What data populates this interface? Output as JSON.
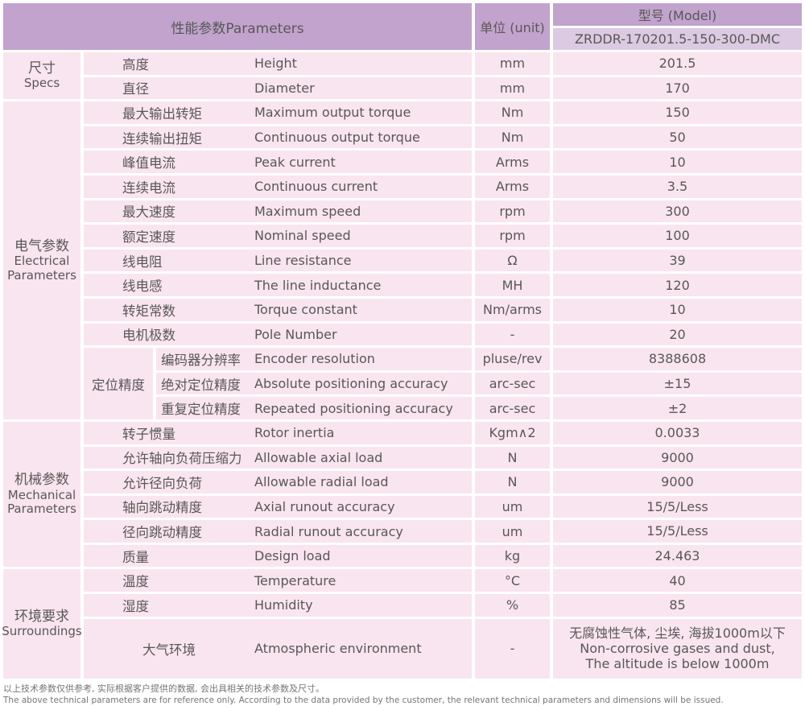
{
  "header": {
    "parameters_label": "性能参数Parameters",
    "unit_label": "单位 (unit)",
    "model_label": "型号 (Model)",
    "model_value": "ZRDDR-170201.5-150-300-DMC"
  },
  "colors": {
    "header_purple": "#c2a3cd",
    "model_row_purple": "#dcc9e2",
    "row_pink": "#f9e5ef",
    "text": "#595757"
  },
  "groups": [
    {
      "title_cn": "尺寸",
      "title_en": "Specs",
      "rows": [
        {
          "cn": "高度",
          "en": "Height",
          "unit": "mm",
          "value": "201.5"
        },
        {
          "cn": "直径",
          "en": "Diameter",
          "unit": "mm",
          "value": "170"
        }
      ]
    },
    {
      "title_cn": "电气参数",
      "title_en": "Electrical Parameters",
      "rows": [
        {
          "cn": "最大输出转矩",
          "en": "Maximum output torque",
          "unit": "Nm",
          "value": "150"
        },
        {
          "cn": "连续输出扭矩",
          "en": "Continuous output torque",
          "unit": "Nm",
          "value": "50"
        },
        {
          "cn": "峰值电流",
          "en": "Peak current",
          "unit": "Arms",
          "value": "10"
        },
        {
          "cn": "连续电流",
          "en": "Continuous current",
          "unit": "Arms",
          "value": "3.5"
        },
        {
          "cn": "最大速度",
          "en": "Maximum speed",
          "unit": "rpm",
          "value": "300"
        },
        {
          "cn": "额定速度",
          "en": "Nominal speed",
          "unit": "rpm",
          "value": "100"
        },
        {
          "cn": "线电阻",
          "en": "Line resistance",
          "unit": "Ω",
          "value": "39"
        },
        {
          "cn": "线电感",
          "en": "The line inductance",
          "unit": "MH",
          "value": "120"
        },
        {
          "cn": "转矩常数",
          "en": "Torque constant",
          "unit": "Nm/arms",
          "value": "10"
        },
        {
          "cn": "电机极数",
          "en": "Pole Number",
          "unit": "-",
          "value": "20"
        }
      ],
      "subgroup": {
        "title": "定位精度",
        "rows": [
          {
            "cn": "编码器分辨率",
            "en": "Encoder resolution",
            "unit": "pluse/rev",
            "value": "8388608"
          },
          {
            "cn": "绝对定位精度",
            "en": "Absolute positioning accuracy",
            "unit": "arc-sec",
            "value": "±15"
          },
          {
            "cn": "重复定位精度",
            "en": "Repeated positioning accuracy",
            "unit": "arc-sec",
            "value": "±2"
          }
        ]
      }
    },
    {
      "title_cn": "机械参数",
      "title_en": "Mechanical Parameters",
      "rows": [
        {
          "cn": "转子惯量",
          "en": "Rotor inertia",
          "unit": "Kgm∧2",
          "value": "0.0033"
        },
        {
          "cn": "允许轴向负荷压缩力",
          "en": "Allowable axial load",
          "unit": "N",
          "value": "9000"
        },
        {
          "cn": "允许径向负荷",
          "en": "Allowable radial load",
          "unit": "N",
          "value": "9000"
        },
        {
          "cn": "轴向跳动精度",
          "en": "Axial runout accuracy",
          "unit": "um",
          "value": "15/5/Less"
        },
        {
          "cn": "径向跳动精度",
          "en": "Radial runout accuracy",
          "unit": "um",
          "value": "15/5/Less"
        },
        {
          "cn": "质量",
          "en": "Design load",
          "unit": "kg",
          "value": "24.463"
        }
      ]
    },
    {
      "title_cn": "环境要求",
      "title_en": "Surroundings",
      "rows": [
        {
          "cn": "温度",
          "en": "Temperature",
          "unit": "°C",
          "value": "40"
        },
        {
          "cn": "湿度",
          "en": "Humidity",
          "unit": "%",
          "value": "85"
        },
        {
          "cn": "大气环境",
          "en": "Atmospheric environment",
          "unit": "-",
          "value": "无腐蚀性气体, 尘埃, 海拔1000m以下\nNon-corrosive gases and dust,\nThe altitude is below 1000m",
          "center_cn": true,
          "tall": true
        }
      ]
    }
  ],
  "footer": {
    "line1": "以上技术参数仅供参考, 实际根据客户提供的数据, 会出具相关的技术参数及尺寸。",
    "line2": "The above technical parameters are for reference only. According to the data provided by the customer, the relevant technical parameters and dimensions will be issued."
  }
}
